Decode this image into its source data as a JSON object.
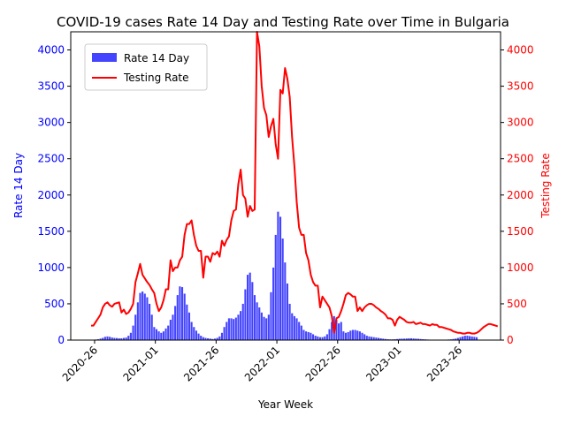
{
  "chart_data": {
    "type": "bar+line",
    "title": "COVID-19 cases Rate 14 Day and Testing Rate over Time in Bulgaria",
    "xlabel": "Year Week",
    "x_ticks": [
      "2020-26",
      "2021-01",
      "2021-26",
      "2022-01",
      "2022-26",
      "2023-01",
      "2023-26"
    ],
    "left_axis": {
      "label": "Rate 14 Day",
      "color": "#0000ff",
      "ylim": [
        0,
        4250
      ],
      "ticks": [
        0,
        500,
        1000,
        1500,
        2000,
        2500,
        3000,
        3500,
        4000
      ]
    },
    "right_axis": {
      "label": "Testing Rate",
      "color": "#ff0000",
      "ylim": [
        0,
        4250
      ],
      "ticks": [
        0,
        500,
        1000,
        1500,
        2000,
        2500,
        3000,
        3500,
        4000
      ]
    },
    "legend": {
      "placement": "upper-left",
      "entries": [
        "Rate 14 Day",
        "Testing Rate"
      ]
    },
    "series": [
      {
        "name": "Rate 14 Day",
        "kind": "bar",
        "color": "#4444ff",
        "values": [
          2,
          5,
          8,
          12,
          20,
          30,
          45,
          50,
          45,
          35,
          30,
          28,
          25,
          25,
          30,
          35,
          60,
          100,
          200,
          350,
          520,
          650,
          670,
          640,
          590,
          500,
          350,
          180,
          150,
          120,
          100,
          120,
          160,
          200,
          280,
          350,
          470,
          620,
          740,
          730,
          640,
          490,
          380,
          250,
          180,
          130,
          90,
          60,
          40,
          30,
          25,
          20,
          15,
          20,
          30,
          50,
          100,
          180,
          250,
          300,
          300,
          290,
          310,
          350,
          400,
          500,
          700,
          900,
          930,
          800,
          620,
          520,
          450,
          380,
          320,
          300,
          350,
          660,
          1000,
          1450,
          1770,
          1700,
          1400,
          1070,
          780,
          500,
          370,
          330,
          300,
          250,
          200,
          140,
          120,
          110,
          100,
          80,
          60,
          50,
          40,
          40,
          50,
          80,
          150,
          250,
          330,
          280,
          230,
          250,
          120,
          100,
          110,
          130,
          140,
          140,
          130,
          120,
          100,
          80,
          60,
          50,
          45,
          40,
          35,
          30,
          25,
          20,
          15,
          12,
          10,
          10,
          12,
          15,
          18,
          20,
          20,
          22,
          25,
          25,
          22,
          20,
          18,
          15,
          12,
          10,
          8,
          5,
          3,
          2,
          2,
          2,
          2,
          3,
          5,
          8,
          10,
          15,
          20,
          30,
          40,
          50,
          60,
          60,
          55,
          50,
          45,
          40
        ]
      },
      {
        "name": "Testing Rate",
        "kind": "line",
        "color": "#ff0000",
        "values": [
          200,
          200,
          250,
          300,
          350,
          450,
          500,
          520,
          480,
          460,
          500,
          510,
          520,
          380,
          420,
          360,
          380,
          430,
          500,
          800,
          920,
          1050,
          900,
          850,
          800,
          760,
          700,
          650,
          500,
          400,
          450,
          550,
          700,
          700,
          1100,
          950,
          1000,
          1000,
          1100,
          1150,
          1450,
          1600,
          1600,
          1650,
          1450,
          1300,
          1230,
          1230,
          860,
          1150,
          1150,
          1080,
          1200,
          1180,
          1220,
          1150,
          1370,
          1300,
          1380,
          1430,
          1650,
          1780,
          1800,
          2150,
          2350,
          2000,
          1950,
          1700,
          1850,
          1780,
          1800,
          4250,
          4050,
          3500,
          3200,
          3100,
          2800,
          2950,
          3050,
          2700,
          2500,
          3450,
          3400,
          3750,
          3600,
          3350,
          2800,
          2400,
          1900,
          1550,
          1450,
          1450,
          1200,
          1100,
          900,
          800,
          750,
          750,
          450,
          600,
          550,
          500,
          450,
          330,
          100,
          300,
          320,
          400,
          500,
          620,
          650,
          630,
          600,
          600,
          400,
          450,
          400,
          450,
          480,
          500,
          500,
          480,
          450,
          430,
          400,
          380,
          350,
          300,
          300,
          280,
          200,
          280,
          320,
          300,
          280,
          250,
          240,
          240,
          250,
          220,
          230,
          240,
          220,
          220,
          210,
          200,
          220,
          210,
          210,
          180,
          180,
          170,
          160,
          150,
          140,
          120,
          110,
          100,
          100,
          90,
          90,
          100,
          100,
          90,
          90,
          100,
          120,
          150,
          180,
          200,
          220,
          220,
          210,
          200,
          190
        ]
      }
    ]
  }
}
